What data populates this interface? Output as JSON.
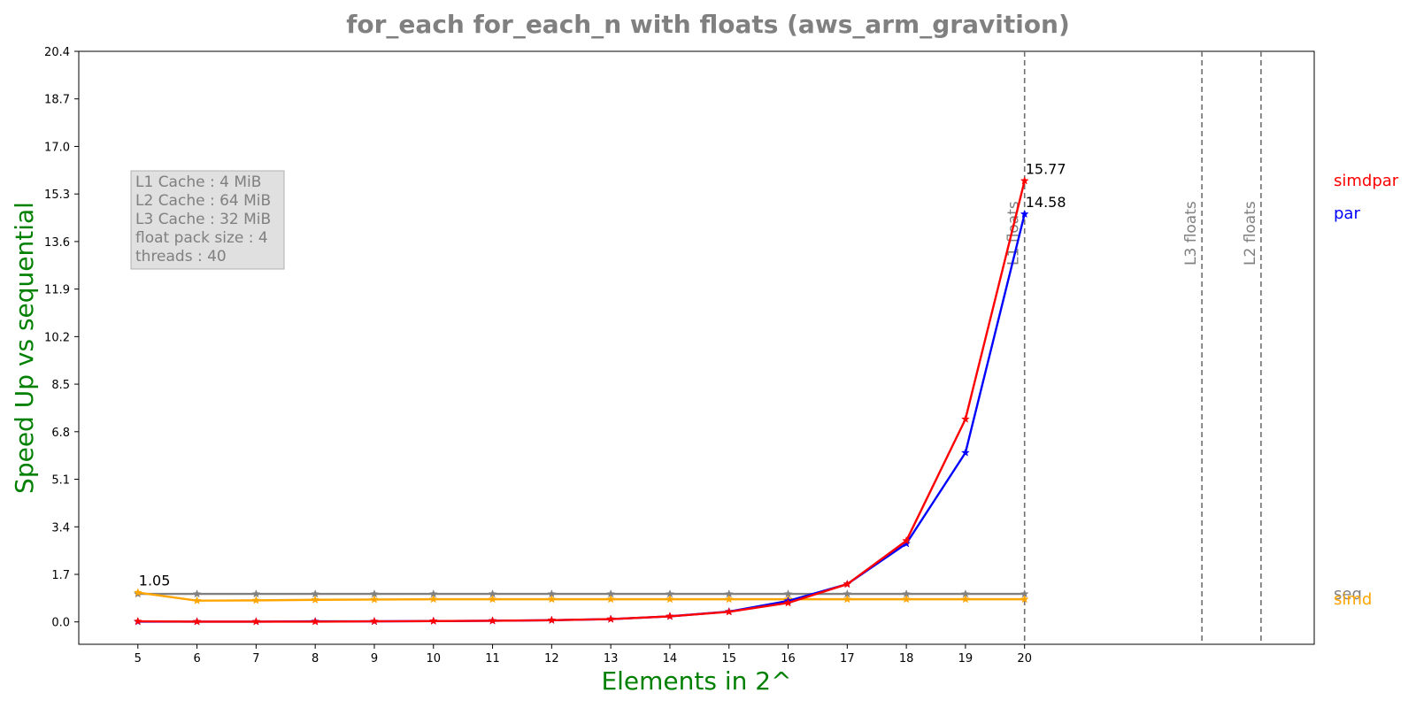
{
  "chart_data": {
    "type": "line",
    "title": "for_each for_each_n with floats  (aws_arm_gravition)",
    "xlabel": "Elements in 2^",
    "ylabel": "Speed Up vs sequential",
    "x": [
      5,
      6,
      7,
      8,
      9,
      10,
      11,
      12,
      13,
      14,
      15,
      16,
      17,
      18,
      19,
      20
    ],
    "x_ticks": [
      "5",
      "6",
      "7",
      "8",
      "9",
      "10",
      "11",
      "12",
      "13",
      "14",
      "15",
      "16",
      "17",
      "18",
      "19",
      "20"
    ],
    "xlim": [
      4,
      24.9
    ],
    "y_ticks": [
      "0.0",
      "1.7",
      "3.4",
      "5.1",
      "6.8",
      "8.5",
      "10.2",
      "11.9",
      "13.6",
      "15.3",
      "17.0",
      "18.7",
      "20.4"
    ],
    "ylim": [
      -0.8,
      20.4
    ],
    "grid": false,
    "series": [
      {
        "name": "seq",
        "color": "#808080",
        "values": [
          1.0,
          1.0,
          1.0,
          1.0,
          1.0,
          1.0,
          1.0,
          1.0,
          1.0,
          1.0,
          1.0,
          1.0,
          1.0,
          1.0,
          1.0,
          1.0
        ]
      },
      {
        "name": "simd",
        "color": "#FFA500",
        "values": [
          1.05,
          0.76,
          0.77,
          0.79,
          0.8,
          0.81,
          0.81,
          0.81,
          0.81,
          0.81,
          0.81,
          0.81,
          0.81,
          0.81,
          0.81,
          0.81
        ]
      },
      {
        "name": "par",
        "color": "#0000FF",
        "values": [
          0.01,
          0.01,
          0.01,
          0.02,
          0.02,
          0.03,
          0.04,
          0.06,
          0.1,
          0.2,
          0.37,
          0.75,
          1.35,
          2.8,
          6.05,
          14.58
        ]
      },
      {
        "name": "simdpar",
        "color": "#FF0000",
        "values": [
          0.02,
          0.01,
          0.01,
          0.01,
          0.02,
          0.03,
          0.04,
          0.06,
          0.1,
          0.2,
          0.36,
          0.68,
          1.35,
          2.9,
          7.25,
          15.77
        ]
      }
    ],
    "vlines": [
      {
        "x": 20,
        "label": "L1 floats"
      },
      {
        "x": 23,
        "label": "L3 floats"
      },
      {
        "x": 24,
        "label": "L2 floats"
      }
    ],
    "annotations": [
      {
        "x": 5,
        "y": 1.05,
        "text": "1.05"
      },
      {
        "x": 20,
        "y": 15.77,
        "text": "15.77"
      },
      {
        "x": 20,
        "y": 14.58,
        "text": "14.58"
      }
    ],
    "info_box": [
      "L1 Cache : 4 MiB",
      "L2 Cache : 64 MiB",
      "L3 Cache : 32 MiB",
      "float pack size : 4",
      "threads : 40"
    ]
  }
}
